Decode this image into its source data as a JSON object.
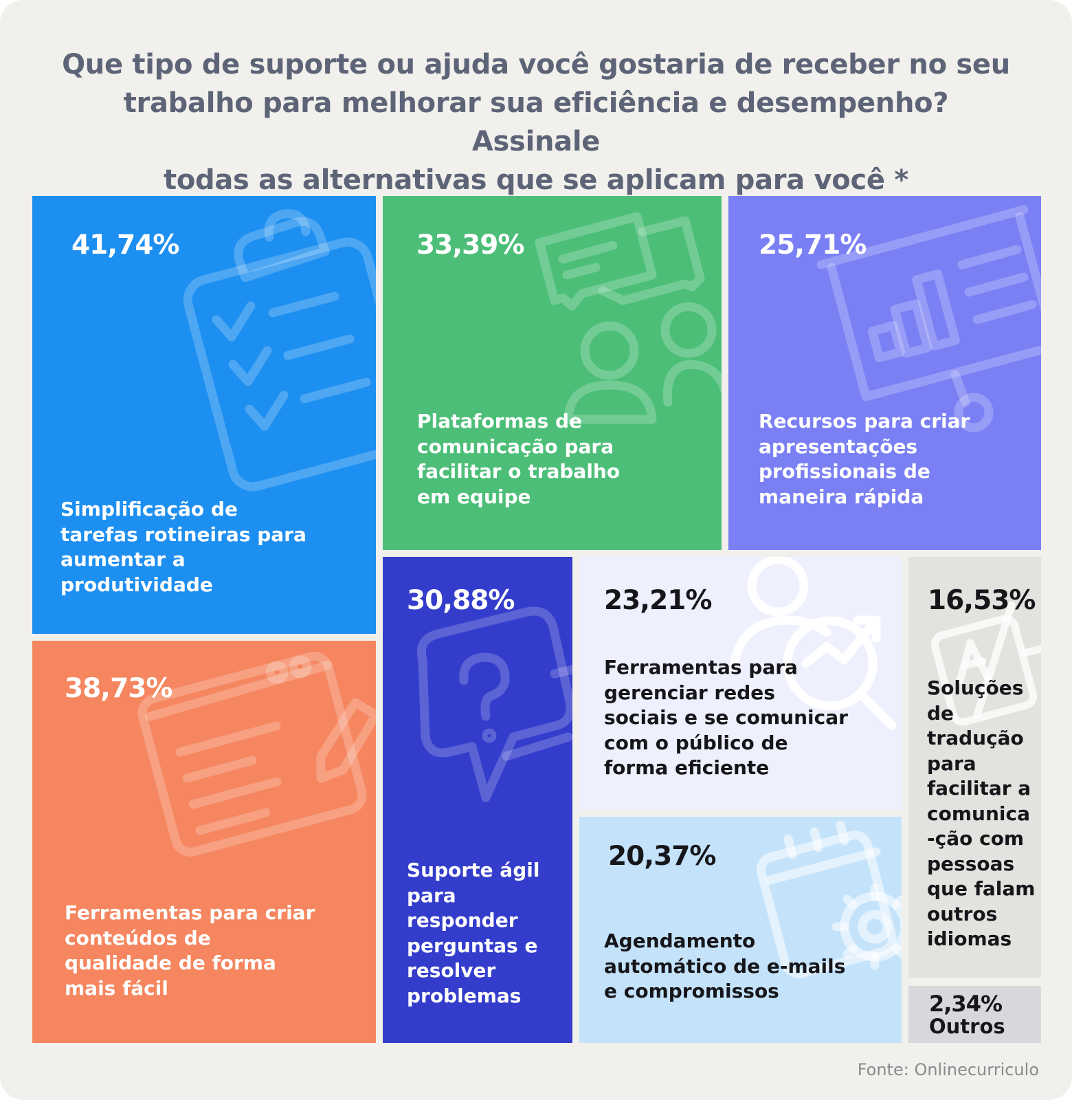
{
  "chart_data": {
    "type": "treemap",
    "title": "Que tipo de suporte ou ajuda você gostaria de receber no seu trabalho para melhorar sua eficiência e desempenho? Assinale todas as alternativas que se aplicam para você *",
    "items": [
      {
        "label": "Simplificação de tarefas rotineiras para aumentar a produtividade",
        "value": 41.74,
        "display": "41,74%",
        "color": "#1d8ff0",
        "icon": "clipboard-checklist-icon"
      },
      {
        "label": "Ferramentas para criar conteúdos de qualidade de forma mais fácil",
        "value": 38.73,
        "display": "38,73%",
        "color": "#f5865f",
        "icon": "browser-pencil-icon"
      },
      {
        "label": "Plataformas de comunicação para facilitar o trabalho em equipe",
        "value": 33.39,
        "display": "33,39%",
        "color": "#4cbe78",
        "icon": "team-chat-icon"
      },
      {
        "label": "Suporte ágil para responder perguntas e resolver problemas",
        "value": 30.88,
        "display": "30,88%",
        "color": "#343dcb",
        "icon": "question-bubble-icon"
      },
      {
        "label": "Recursos para criar apresentações profissionais de maneira rápida",
        "value": 25.71,
        "display": "25,71%",
        "color": "#7a80f4",
        "icon": "presentation-board-icon"
      },
      {
        "label": "Ferramentas para gerenciar redes sociais e se comunicar com o público de forma eficiente",
        "value": 23.21,
        "display": "23,21%",
        "color": "#eef0fd",
        "icon": "user-growth-icon"
      },
      {
        "label": "Agendamento automático de e-mails e compromissos",
        "value": 20.37,
        "display": "20,37%",
        "color": "#c4e3fb",
        "icon": "calendar-gear-icon"
      },
      {
        "label": "Soluções de tradução para facilitar a comunica-ção com pessoas que falam outros idiomas",
        "value": 16.53,
        "display": "16,53%",
        "color": "#e2e2df",
        "icon": "translate-icon"
      },
      {
        "label": "Outros",
        "value": 2.34,
        "display": "2,34%",
        "color": "#d8d8dc"
      }
    ]
  },
  "tiles": {
    "simplificacao": {
      "pct": "41,74%",
      "lines": [
        "Simplificação de",
        "tarefas rotineiras para",
        "aumentar a",
        "produtividade"
      ]
    },
    "conteudos": {
      "pct": "38,73%",
      "lines": [
        "Ferramentas para criar",
        "conteúdos de",
        "qualidade de forma",
        "mais fácil"
      ]
    },
    "comunicacao": {
      "pct": "33,39%",
      "lines": [
        "Plataformas de",
        "comunicação para",
        "facilitar o trabalho",
        "em equipe"
      ]
    },
    "apresentacoes": {
      "pct": "25,71%",
      "lines": [
        "Recursos para criar",
        "apresentações",
        "profissionais de",
        "maneira rápida"
      ]
    },
    "suporte": {
      "pct": "30,88%",
      "lines": [
        "Suporte ágil",
        "para",
        "responder",
        "perguntas e",
        "resolver",
        "problemas"
      ]
    },
    "redes": {
      "pct": "23,21%",
      "lines": [
        "Ferramentas para",
        "gerenciar redes",
        "sociais e se comunicar",
        "com o público de",
        "forma eficiente"
      ]
    },
    "agendamento": {
      "pct": "20,37%",
      "lines": [
        "Agendamento",
        "automático de e-mails",
        "e compromissos"
      ]
    },
    "traducao": {
      "pct": "16,53%",
      "lines": [
        "Soluções",
        "de",
        "tradução",
        "para",
        "facilitar a",
        "comunica",
        "-ção com",
        "pessoas",
        "que falam",
        "outros",
        "idiomas"
      ]
    },
    "outros": {
      "pct": "2,34%",
      "label": "Outros"
    }
  },
  "title_lines": [
    "Que tipo de suporte ou ajuda você gostaria de receber no seu",
    "trabalho para melhorar sua eficiência e desempenho? Assinale",
    "todas as alternativas que se aplicam para você *"
  ],
  "source": "Fonte: Onlinecurriculo"
}
